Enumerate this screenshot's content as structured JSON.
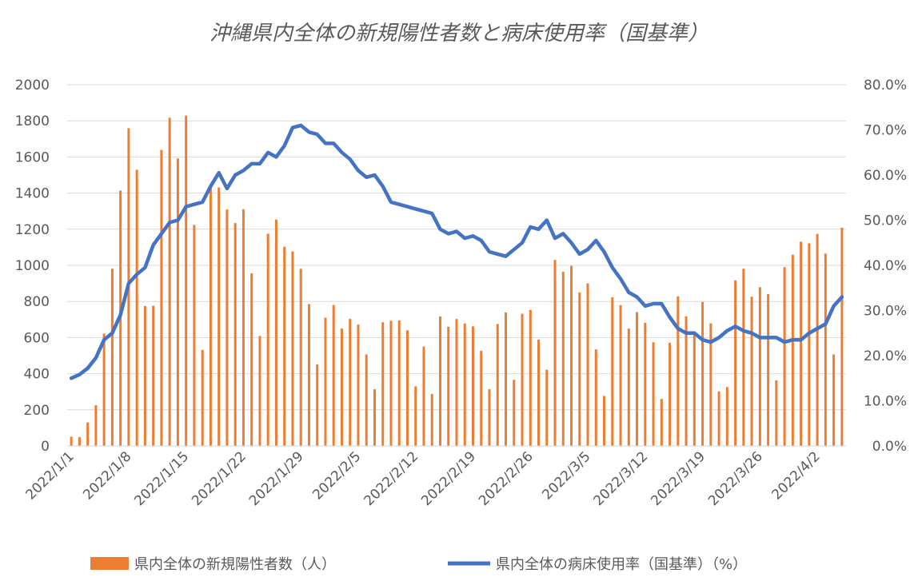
{
  "chart_data": {
    "type": "bar",
    "title": "沖縄県内全体の新規陽性者数と病床使用率（国基準）",
    "x_tick_labels": [
      "2022/1/1",
      "2022/1/8",
      "2022/1/15",
      "2022/1/22",
      "2022/1/29",
      "2022/2/5",
      "2022/2/12",
      "2022/2/19",
      "2022/2/26",
      "2022/3/5",
      "2022/3/12",
      "2022/3/19",
      "2022/3/26",
      "2022/4/2"
    ],
    "y_left": {
      "ticks": [
        "0",
        "200",
        "400",
        "600",
        "800",
        "1000",
        "1200",
        "1400",
        "1600",
        "1800",
        "2000"
      ],
      "range": [
        0,
        2000
      ]
    },
    "y_right": {
      "ticks": [
        "0.0%",
        "10.0%",
        "20.0%",
        "30.0%",
        "40.0%",
        "50.0%",
        "60.0%",
        "70.0%",
        "80.0%"
      ],
      "range": [
        0,
        80
      ]
    },
    "grid": true,
    "legend_position": "bottom",
    "series": [
      {
        "name": "県内全体の新規陽性者数（人）",
        "kind": "bar",
        "axis": "left",
        "color": "#ED7D31",
        "values": [
          51,
          49,
          130,
          225,
          622,
          981,
          1414,
          1759,
          1529,
          775,
          776,
          1639,
          1817,
          1592,
          1829,
          1224,
          532,
          1435,
          1431,
          1309,
          1234,
          1311,
          956,
          609,
          1175,
          1253,
          1103,
          1077,
          981,
          785,
          451,
          710,
          781,
          650,
          704,
          672,
          507,
          314,
          685,
          693,
          695,
          640,
          330,
          550,
          288,
          717,
          660,
          703,
          678,
          662,
          527,
          314,
          675,
          739,
          366,
          732,
          753,
          589,
          422,
          1030,
          964,
          997,
          850,
          900,
          535,
          277,
          823,
          780,
          650,
          741,
          682,
          574,
          260,
          571,
          828,
          718,
          624,
          797,
          679,
          302,
          326,
          917,
          981,
          826,
          879,
          841,
          363,
          990,
          1059,
          1131,
          1122,
          1174,
          1065,
          507,
          1208
        ]
      },
      {
        "name": "県内全体の病床使用率（国基準）（%）",
        "kind": "line",
        "axis": "right",
        "color": "#4472C4",
        "values": [
          15.0,
          15.8,
          17.2,
          19.5,
          23.5,
          25.0,
          29.0,
          36.0,
          38.0,
          39.5,
          44.5,
          47.0,
          49.5,
          50.0,
          53.0,
          53.5,
          54.0,
          57.5,
          60.5,
          57.0,
          60.0,
          61.0,
          62.5,
          62.5,
          65.0,
          64.0,
          66.5,
          70.5,
          71.0,
          69.5,
          69.0,
          67.0,
          67.0,
          65.0,
          63.5,
          61.0,
          59.5,
          60.0,
          57.5,
          54.0,
          53.5,
          53.0,
          52.5,
          52.0,
          51.5,
          48.0,
          47.0,
          47.5,
          46.0,
          46.5,
          45.5,
          43.0,
          42.5,
          42.0,
          43.5,
          45.0,
          48.5,
          48.0,
          50.0,
          46.0,
          47.0,
          45.0,
          42.5,
          43.5,
          45.5,
          43.0,
          39.5,
          37.0,
          34.0,
          33.0,
          31.0,
          31.5,
          31.5,
          28.5,
          26.0,
          25.0,
          25.0,
          23.5,
          23.0,
          24.0,
          25.5,
          26.5,
          25.5,
          25.0,
          24.0,
          24.0,
          24.0,
          23.0,
          23.5,
          23.5,
          25.0,
          26.0,
          27.0,
          31.0,
          33.0
        ]
      }
    ]
  }
}
